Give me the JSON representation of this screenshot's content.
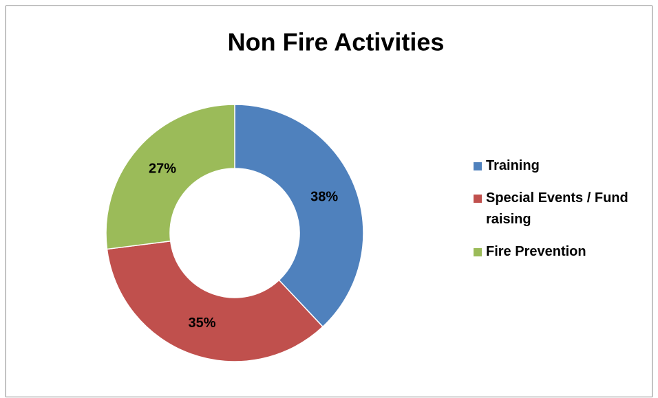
{
  "chart_data": {
    "type": "donut",
    "title": "Non Fire Activities",
    "categories": [
      "Training",
      "Special Events / Fund raising",
      "Fire Prevention"
    ],
    "values": [
      38,
      35,
      27
    ],
    "value_labels": [
      "38%",
      "35%",
      "27%"
    ],
    "colors": [
      "#4f81bd",
      "#c0504d",
      "#9bbb59"
    ],
    "legend": "right"
  }
}
